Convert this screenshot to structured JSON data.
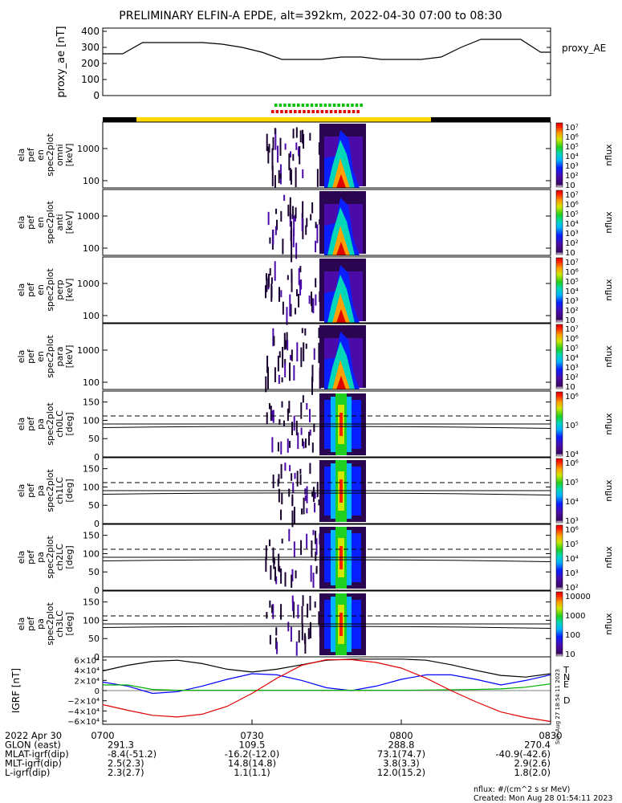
{
  "title": "PRELIMINARY ELFIN-A EPDE, alt=392km, 2022-04-30 07:00 to 08:30",
  "colors": {
    "trace": "#000000",
    "bar_yellow": "#ffd800",
    "bar_black": "#000000",
    "qual_green": "#00c000",
    "qual_red": "#e00000",
    "igrf_t": "#000000",
    "igrf_n": "#0000ff",
    "igrf_e": "#00b000",
    "igrf_d": "#e00000"
  },
  "chart_data": [
    {
      "type": "line",
      "name": "proxy_ae",
      "ylabel": "proxy_ae [nT]",
      "legend": "proxy_AE",
      "ylim": [
        0,
        420
      ],
      "yticks": [
        "400",
        "300",
        "200",
        "100",
        "0"
      ],
      "x": [
        0,
        4,
        8,
        12,
        16,
        20,
        24,
        28,
        32,
        36,
        40,
        44,
        48,
        52,
        56,
        60,
        64,
        68,
        72,
        76,
        80,
        84,
        88,
        90
      ],
      "values": [
        260,
        260,
        330,
        330,
        330,
        330,
        320,
        300,
        270,
        225,
        225,
        225,
        240,
        240,
        225,
        225,
        225,
        240,
        300,
        350,
        350,
        350,
        270,
        270
      ]
    },
    {
      "type": "heatmap",
      "name": "ela_pef_en_spec2plot_omni",
      "ylabel_lines": [
        "ela",
        "pef",
        "en",
        "spec2plot",
        "omni",
        "[keV]"
      ],
      "yticks": [
        "1000",
        "100"
      ],
      "colorbar_ticks": [
        "10⁷",
        "10⁶",
        "10⁵",
        "10⁴",
        "10³",
        "10²",
        "10"
      ],
      "colorbar_label": "nflux"
    },
    {
      "type": "heatmap",
      "name": "ela_pef_en_spec2plot_anti",
      "ylabel_lines": [
        "ela",
        "pef",
        "en",
        "spec2plot",
        "anti",
        "[keV]"
      ],
      "yticks": [
        "1000",
        "100"
      ],
      "colorbar_ticks": [
        "10⁷",
        "10⁶",
        "10⁵",
        "10⁴",
        "10³",
        "10²",
        "10"
      ],
      "colorbar_label": "nflux"
    },
    {
      "type": "heatmap",
      "name": "ela_pef_en_spec2plot_perp",
      "ylabel_lines": [
        "ela",
        "pef",
        "en",
        "spec2plot",
        "perp",
        "[keV]"
      ],
      "yticks": [
        "1000",
        "100"
      ],
      "colorbar_ticks": [
        "10⁷",
        "10⁶",
        "10⁵",
        "10⁴",
        "10³",
        "10²",
        "10"
      ],
      "colorbar_label": "nflux"
    },
    {
      "type": "heatmap",
      "name": "ela_pef_en_spec2plot_para",
      "ylabel_lines": [
        "ela",
        "pef",
        "en",
        "spec2plot",
        "para",
        "[keV]"
      ],
      "yticks": [
        "1000",
        "100"
      ],
      "colorbar_ticks": [
        "10⁷",
        "10⁶",
        "10⁵",
        "10⁴",
        "10³",
        "10²",
        "10"
      ],
      "colorbar_label": "nflux"
    },
    {
      "type": "heatmap",
      "name": "ela_pef_pa_spec2plot_ch0LC",
      "ylabel_lines": [
        "ela",
        "pef",
        "pa",
        "spec2plot",
        "ch0LC",
        "[deg]"
      ],
      "yticks": [
        "150",
        "100",
        "50",
        "0"
      ],
      "colorbar_ticks": [
        "10⁶",
        "10⁵",
        "10⁴"
      ],
      "colorbar_label": "nflux"
    },
    {
      "type": "heatmap",
      "name": "ela_pef_pa_spec2plot_ch1LC",
      "ylabel_lines": [
        "ela",
        "pef",
        "pa",
        "spec2plot",
        "ch1LC",
        "[deg]"
      ],
      "yticks": [
        "150",
        "100",
        "50",
        "0"
      ],
      "colorbar_ticks": [
        "10⁶",
        "10⁵",
        "10⁴",
        "10³"
      ],
      "colorbar_label": "nflux"
    },
    {
      "type": "heatmap",
      "name": "ela_pef_pa_spec2plot_ch2LC",
      "ylabel_lines": [
        "ela",
        "pef",
        "pa",
        "spec2plot",
        "ch2LC",
        "[deg]"
      ],
      "yticks": [
        "150",
        "100",
        "50",
        "0"
      ],
      "colorbar_ticks": [
        "10⁶",
        "10⁵",
        "10⁴",
        "10³",
        "10²"
      ],
      "colorbar_label": "nflux"
    },
    {
      "type": "heatmap",
      "name": "ela_pef_pa_spec2plot_ch3LC",
      "ylabel_lines": [
        "ela",
        "pef",
        "pa",
        "spec2plot",
        "ch3LC",
        "[deg]"
      ],
      "yticks": [
        "150",
        "100",
        "50",
        "0"
      ],
      "colorbar_ticks": [
        "10000",
        "1000",
        "100",
        "10"
      ],
      "colorbar_label": "nflux"
    },
    {
      "type": "line",
      "name": "IGRF",
      "ylabel": "IGRF [nT]",
      "yticks": [
        "6×10⁴",
        "4×10⁴",
        "2×10⁴",
        "0",
        "−2×10⁴",
        "−4×10⁴",
        "−6×10⁴"
      ],
      "ylim": [
        -60000,
        60000
      ],
      "x": [
        0,
        5,
        10,
        15,
        20,
        25,
        30,
        35,
        40,
        45,
        50,
        55,
        60,
        65,
        70,
        75,
        80,
        85,
        90
      ],
      "series": [
        {
          "name": "T",
          "values": [
            35000,
            45000,
            52000,
            54000,
            48000,
            38000,
            33000,
            38000,
            46000,
            54000,
            56000,
            56000,
            56000,
            54000,
            46000,
            36000,
            27000,
            24000,
            30000
          ]
        },
        {
          "name": "N",
          "values": [
            15000,
            8000,
            -5000,
            -2000,
            8000,
            20000,
            30000,
            28000,
            18000,
            5000,
            0,
            8000,
            20000,
            28000,
            28000,
            20000,
            10000,
            18000,
            28000
          ]
        },
        {
          "name": "E",
          "values": [
            10000,
            10000,
            2000,
            500,
            500,
            500,
            500,
            500,
            500,
            500,
            500,
            500,
            500,
            1000,
            1500,
            2000,
            3000,
            6000,
            12000
          ]
        },
        {
          "name": "D",
          "values": [
            -25000,
            -35000,
            -44000,
            -47000,
            -42000,
            -28000,
            -5000,
            22000,
            45000,
            55000,
            55000,
            50000,
            40000,
            22000,
            0,
            -20000,
            -38000,
            -48000,
            -55000
          ]
        }
      ]
    }
  ],
  "xaxis": {
    "row_labels": [
      "2022 Apr 30",
      "GLON (east)",
      "MLAT-igrf(dip)",
      "MLT-igrf(dip)",
      "L-igrf(dip)"
    ],
    "ticks": [
      "0700",
      "0730",
      "0800",
      "0830"
    ],
    "rows": [
      [
        "291.3",
        "109.5",
        "288.8",
        "270.4"
      ],
      [
        "-8.4(-51.2)",
        "-16.2(-12.0)",
        "73.1(74.7)",
        "-40.9(-42.6)"
      ],
      [
        "2.5(2.3)",
        "14.8(14.8)",
        "3.8(3.3)",
        "2.9(2.6)"
      ],
      [
        "2.3(2.7)",
        "1.1(1.1)",
        "12.0(15.2)",
        "1.8(2.0)"
      ]
    ]
  },
  "footer": {
    "units": "nflux: #/(cm^2 s sr MeV)",
    "created": "Created: Mon Aug 28 01:54:11 2023",
    "side_stamp": "Sun Aug 27 18:54:11 2023"
  }
}
